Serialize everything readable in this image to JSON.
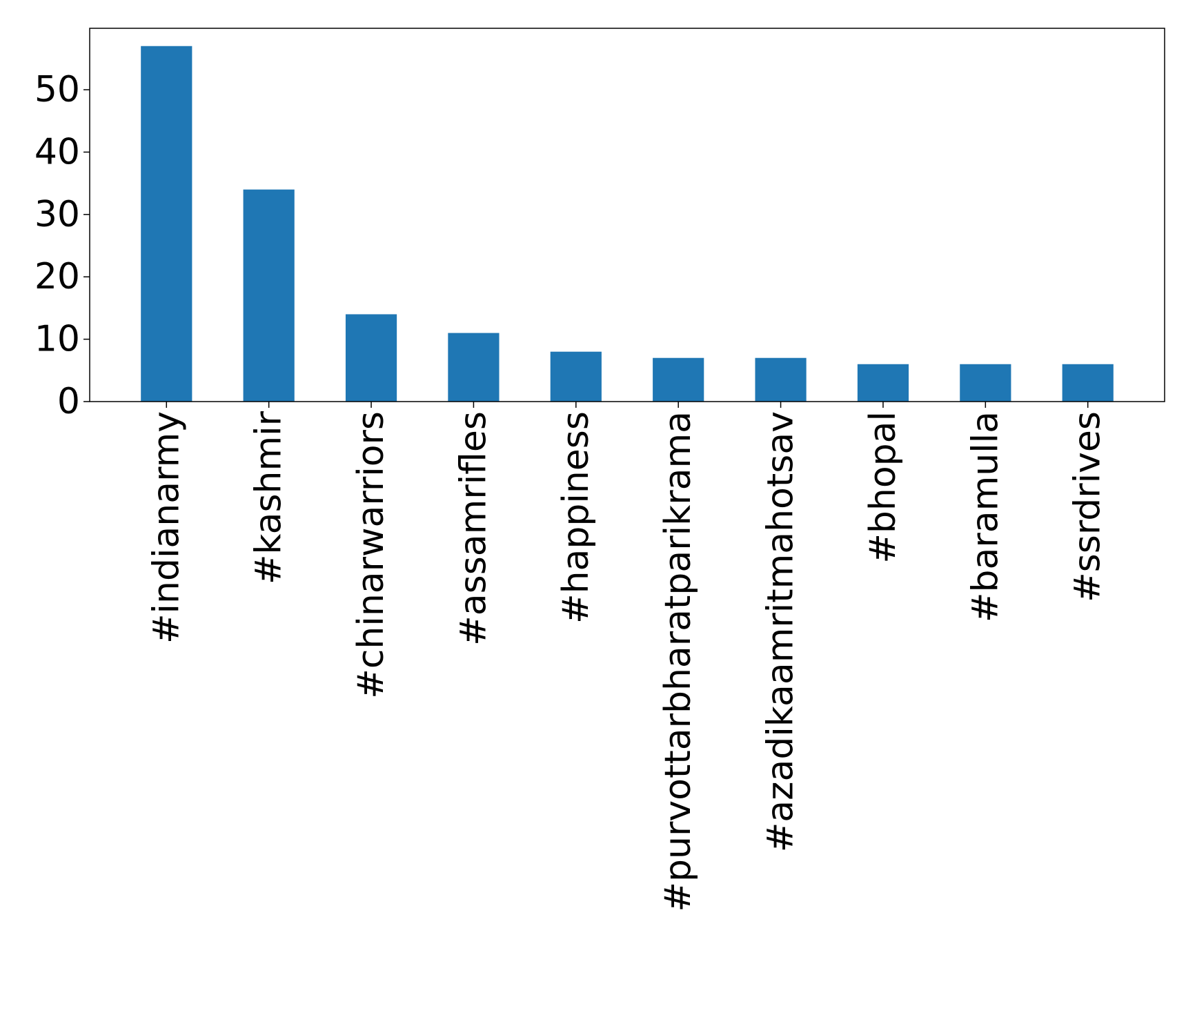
{
  "chart_data": {
    "type": "bar",
    "title": "",
    "xlabel": "",
    "ylabel": "",
    "categories": [
      "#indianarmy",
      "#kashmir",
      "#chinarwarriors",
      "#assamrifles",
      "#happiness",
      "#purvottarbharatparikrama",
      "#azadikaamritmahotsav",
      "#bhopal",
      "#baramulla",
      "#ssrdrives"
    ],
    "values": [
      57,
      34,
      14,
      11,
      8,
      7,
      7,
      6,
      6,
      6
    ],
    "yticks": [
      0,
      10,
      20,
      30,
      40,
      50
    ],
    "ylim": [
      0,
      59.85
    ],
    "bar_color": "#1f77b4",
    "grid": false,
    "legend": "none"
  }
}
